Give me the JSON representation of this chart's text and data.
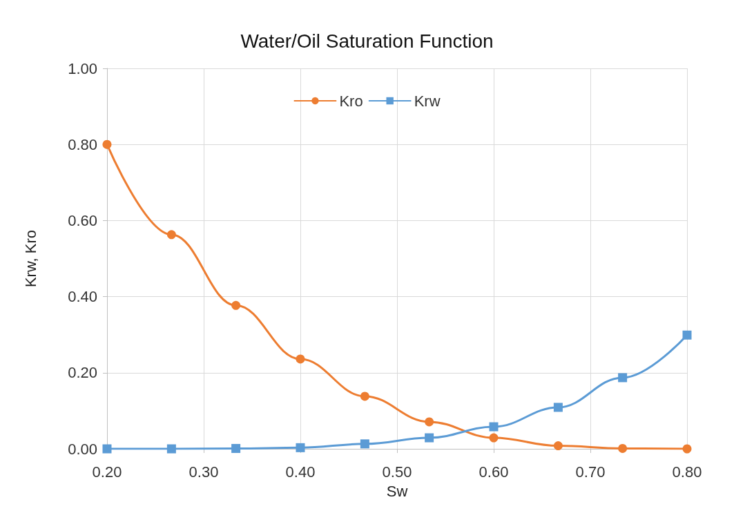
{
  "chart_data": {
    "type": "line",
    "title": "Water/Oil Saturation Function",
    "xlabel": "Sw",
    "ylabel": "Krw, Kro",
    "x": [
      0.2,
      0.2667,
      0.3333,
      0.4,
      0.4667,
      0.5333,
      0.6,
      0.6667,
      0.7333,
      0.8
    ],
    "series": [
      {
        "name": "Kro",
        "color": "#ed7d31",
        "marker": "circle",
        "values": [
          0.8,
          0.563,
          0.377,
          0.236,
          0.138,
          0.071,
          0.029,
          0.008,
          0.001,
          0
        ]
      },
      {
        "name": "Krw",
        "color": "#5b9bd5",
        "marker": "square",
        "values": [
          0,
          0,
          0.001,
          0.003,
          0.013,
          0.029,
          0.058,
          0.109,
          0.187,
          0.299
        ]
      }
    ],
    "xlim": [
      0.2,
      0.8
    ],
    "xticks": [
      {
        "value": 0.2,
        "label": "0.20"
      },
      {
        "value": 0.3,
        "label": "0.30"
      },
      {
        "value": 0.4,
        "label": "0.40"
      },
      {
        "value": 0.5,
        "label": "0.50"
      },
      {
        "value": 0.6,
        "label": "0.60"
      },
      {
        "value": 0.7,
        "label": "0.70"
      },
      {
        "value": 0.8,
        "label": "0.80"
      }
    ],
    "ylim": [
      0,
      1
    ],
    "yticks": [
      {
        "value": 0,
        "label": "0.00"
      },
      {
        "value": 0.2,
        "label": "0.20"
      },
      {
        "value": 0.4,
        "label": "0.40"
      },
      {
        "value": 0.6,
        "label": "0.60"
      },
      {
        "value": 0.8,
        "label": "0.80"
      },
      {
        "value": 1,
        "label": "1.00"
      }
    ],
    "grid": true,
    "legend": "top",
    "line_style": "solid"
  }
}
